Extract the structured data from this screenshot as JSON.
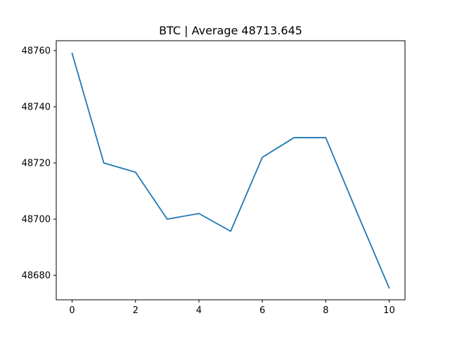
{
  "chart_data": {
    "type": "line",
    "title": "BTC | Average 48713.645",
    "xlabel": "",
    "ylabel": "",
    "x": [
      0,
      1,
      2,
      3,
      4,
      5,
      6,
      7,
      8,
      9,
      10
    ],
    "series": [
      {
        "color": "#1f77b4",
        "values": [
          48759,
          48720,
          48716.7,
          48700,
          48702,
          48695.7,
          48722,
          48729,
          48729,
          48702,
          48675.5
        ]
      }
    ],
    "xlim": [
      -0.5,
      10.5
    ],
    "ylim": [
      48671.3,
      48763.5
    ],
    "xticks": [
      0,
      2,
      4,
      6,
      8,
      10
    ],
    "yticks": [
      48680,
      48700,
      48720,
      48740,
      48760
    ],
    "grid": false,
    "legend": "none"
  }
}
